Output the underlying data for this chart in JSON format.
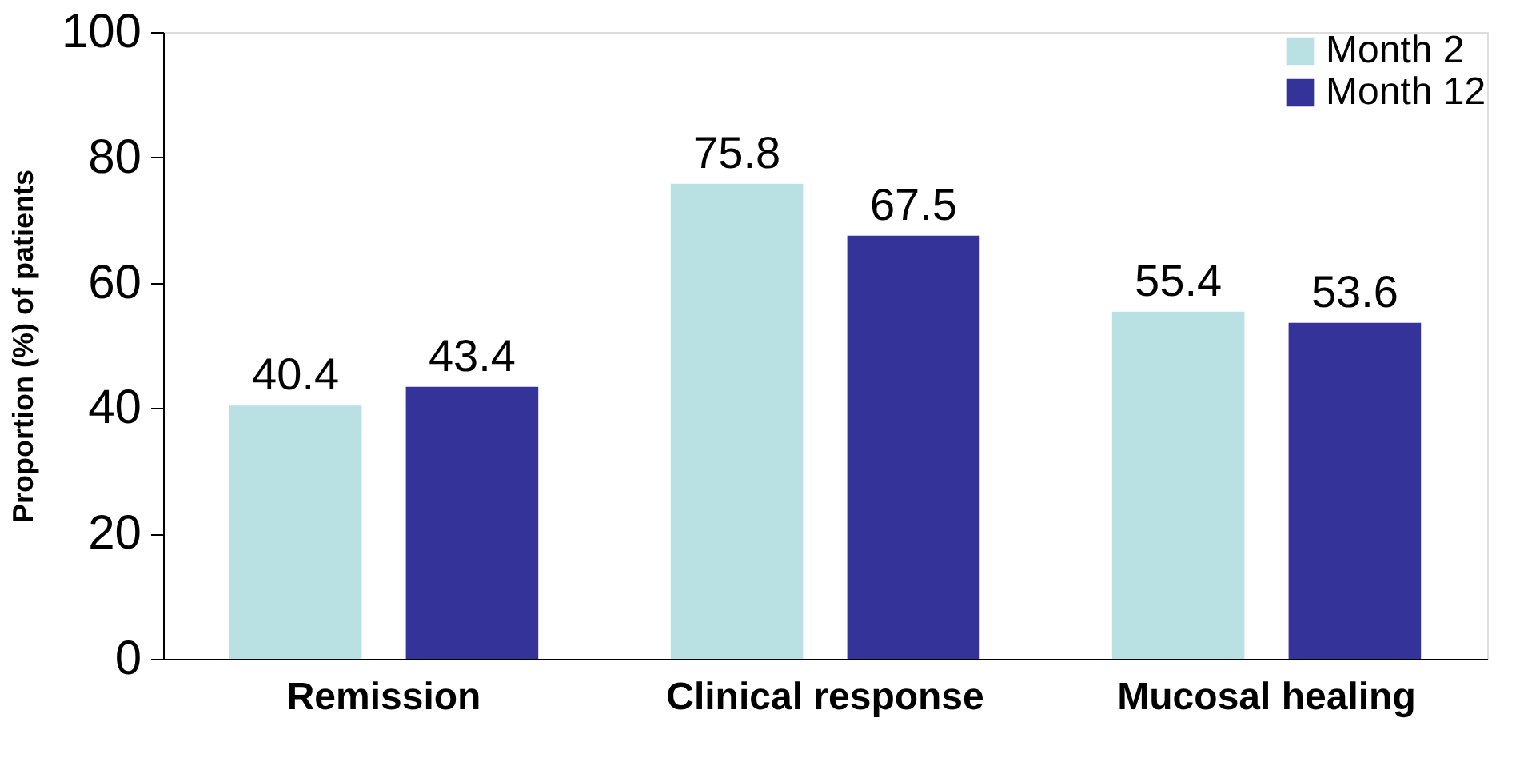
{
  "chart_data": {
    "type": "bar",
    "ylabel": "Proportion (%) of patients",
    "categories": [
      "Remission",
      "Clinical response",
      "Mucosal healing"
    ],
    "series": [
      {
        "name": "Month 2",
        "color": "#b9e1e3",
        "values": [
          40.4,
          75.8,
          55.4
        ]
      },
      {
        "name": "Month 12",
        "color": "#333399",
        "values": [
          43.4,
          67.5,
          53.6
        ]
      }
    ],
    "ylim": [
      0,
      100
    ],
    "yticks": [
      0,
      20,
      40,
      60,
      80,
      100
    ],
    "grid": false,
    "legend": "top right",
    "data_labels": true
  }
}
